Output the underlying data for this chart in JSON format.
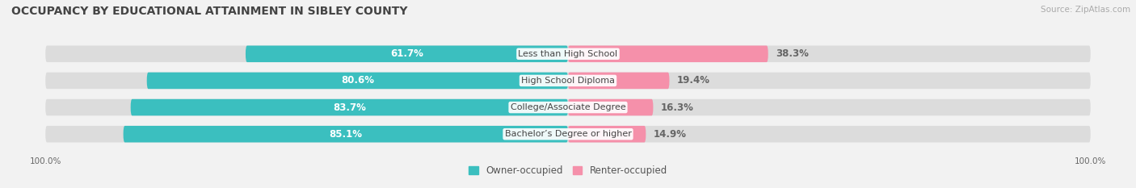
{
  "title": "OCCUPANCY BY EDUCATIONAL ATTAINMENT IN SIBLEY COUNTY",
  "source": "Source: ZipAtlas.com",
  "categories": [
    "Less than High School",
    "High School Diploma",
    "College/Associate Degree",
    "Bachelor’s Degree or higher"
  ],
  "owner_pct": [
    61.7,
    80.6,
    83.7,
    85.1
  ],
  "renter_pct": [
    38.3,
    19.4,
    16.3,
    14.9
  ],
  "owner_color": "#3bbfbf",
  "renter_color": "#f590aa",
  "bg_color": "#f2f2f2",
  "bar_bg_color": "#dcdcdc",
  "label_color_owner": "#ffffff",
  "label_color_renter": "#666666",
  "label_color_cat": "#444444",
  "axis_label_left": "100.0%",
  "axis_label_right": "100.0%",
  "title_fontsize": 10,
  "source_fontsize": 7.5,
  "bar_label_fontsize": 8.5,
  "category_fontsize": 8,
  "legend_fontsize": 8.5,
  "axis_tick_fontsize": 7.5
}
